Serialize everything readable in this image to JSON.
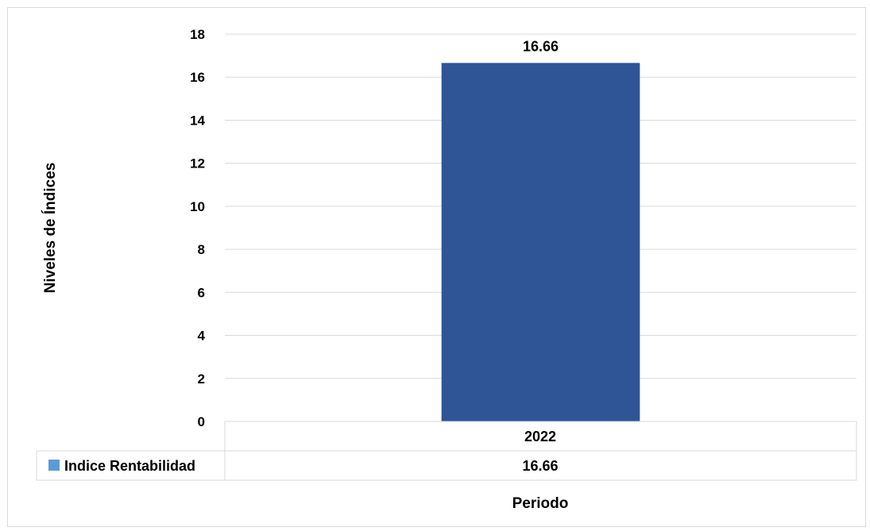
{
  "chart_data": {
    "type": "bar",
    "categories": [
      "2022"
    ],
    "series": [
      {
        "name": "Indice Rentabilidad",
        "values": [
          16.66
        ],
        "color": "#2f5597"
      }
    ],
    "data_labels": [
      "16.66"
    ],
    "xlabel": "Periodo",
    "ylabel": "Niveles de Índices",
    "ylim": [
      0,
      18
    ],
    "yticks": [
      "0",
      "2",
      "4",
      "6",
      "8",
      "10",
      "12",
      "14",
      "16",
      "18"
    ],
    "grid": true,
    "legend": "data-table-below",
    "data_table": {
      "series_label": "Indice Rentabilidad",
      "legend_key_color": "#5b9bd5",
      "values": [
        "16.66"
      ]
    }
  }
}
